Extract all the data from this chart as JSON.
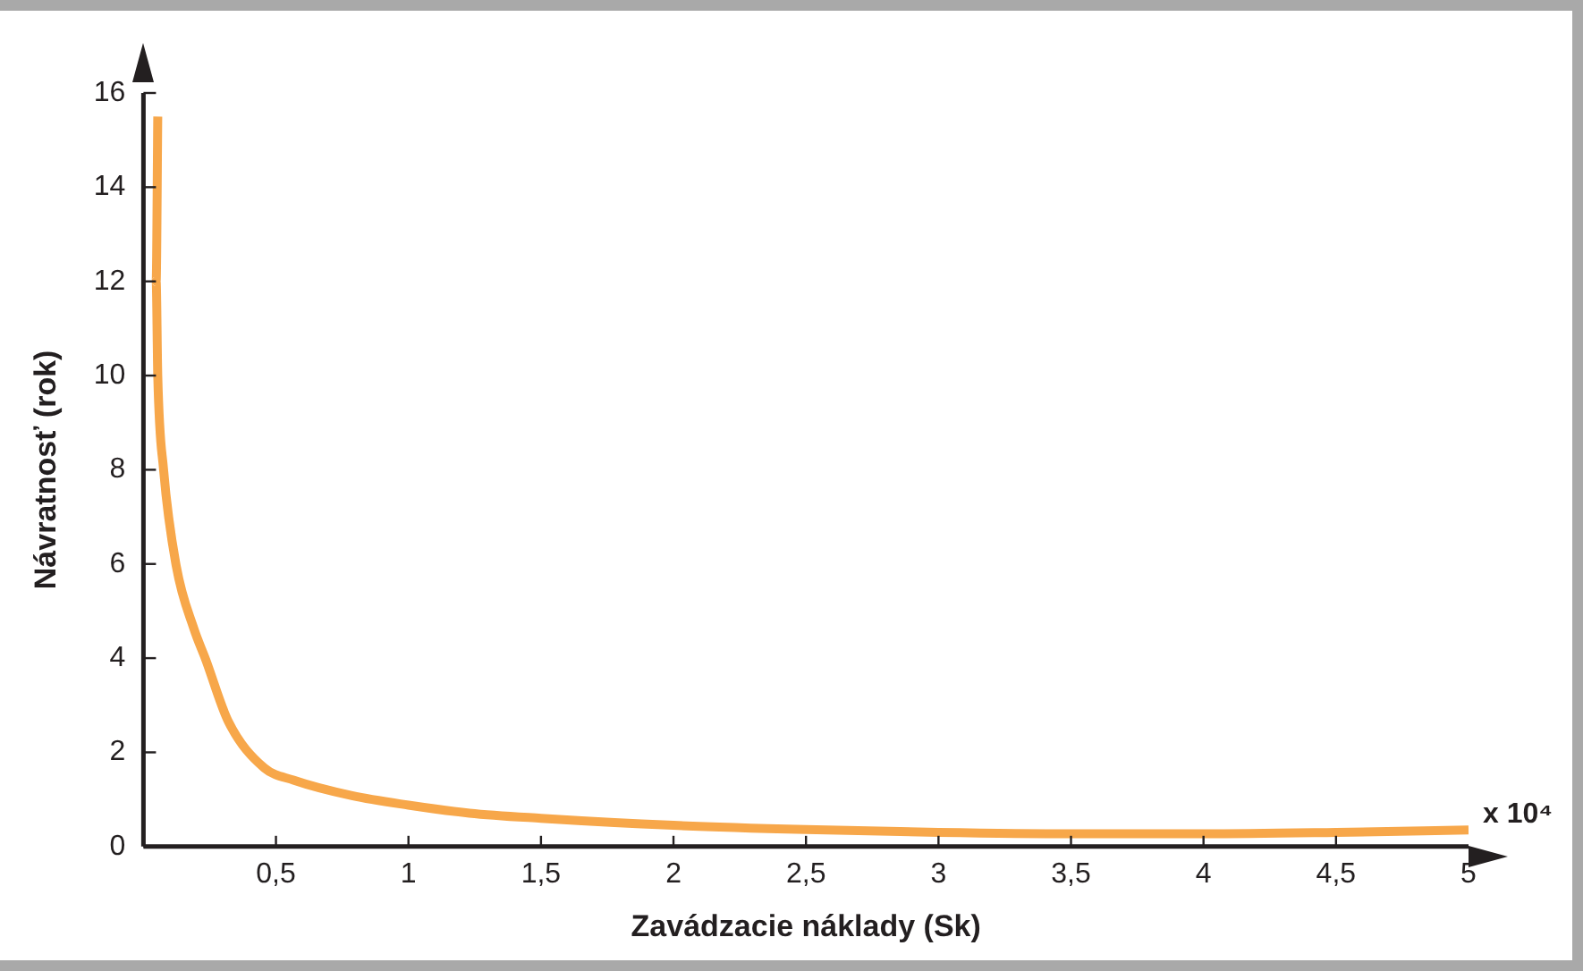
{
  "chart_data": {
    "type": "line",
    "xlabel": "Zavádzacie náklady (Sk)",
    "ylabel": "Návratnosť (rok)",
    "annotations": [
      "x 10⁴"
    ],
    "x": [
      0.054,
      0.048,
      0.054,
      0.076,
      0.124,
      0.19,
      0.235,
      0.32,
      0.456,
      0.566,
      0.787,
      1.0,
      1.23,
      1.5,
      2,
      2.5,
      3,
      3.5,
      4,
      4.5,
      5
    ],
    "series": [
      {
        "color": "#f7a74a",
        "values": [
          15.5,
          12,
          10,
          8,
          5.95,
          4.63,
          3.97,
          2.66,
          1.67,
          1.41,
          1.08,
          0.88,
          0.71,
          0.6,
          0.45,
          0.36,
          0.3,
          0.27,
          0.27,
          0.3,
          0.35
        ]
      }
    ],
    "xlim": [
      0,
      5
    ],
    "ylim": [
      0,
      16
    ],
    "xticks": [
      {
        "value": 0.5,
        "label": "0,5"
      },
      1,
      {
        "value": 1.5,
        "label": "1,5"
      },
      2,
      {
        "value": 2.5,
        "label": "2,5"
      },
      3,
      {
        "value": 3.5,
        "label": "3,5"
      },
      4,
      {
        "value": 4.5,
        "label": "4,5"
      },
      5
    ],
    "yticks": [
      0,
      2,
      4,
      6,
      8,
      10,
      12,
      14,
      16
    ],
    "grid": false,
    "legend": false,
    "marker": "none",
    "line_style": "solid"
  }
}
